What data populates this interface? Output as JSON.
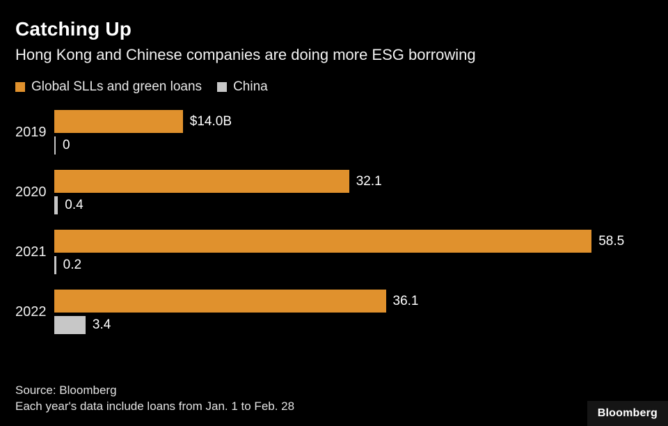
{
  "header": {
    "title": "Catching Up",
    "subtitle": "Hong Kong and Chinese companies are doing more ESG borrowing"
  },
  "chart_data": {
    "type": "bar",
    "orientation": "horizontal",
    "title": "Catching Up",
    "subtitle": "Hong Kong and Chinese companies are doing more ESG borrowing",
    "legend_position": "top",
    "xlim": [
      0,
      60
    ],
    "grid": false,
    "categories": [
      "2019",
      "2020",
      "2021",
      "2022"
    ],
    "series": [
      {
        "name": "Global SLLs and green loans",
        "color": "#E0912D",
        "values": [
          14.0,
          32.1,
          58.5,
          36.1
        ],
        "labels": [
          "$14.0B",
          "32.1",
          "58.5",
          "36.1"
        ]
      },
      {
        "name": "China",
        "color": "#C7C7C7",
        "values": [
          0,
          0.4,
          0.2,
          3.4
        ],
        "labels": [
          "0",
          "0.4",
          "0.2",
          "3.4"
        ]
      }
    ]
  },
  "footer": {
    "source": "Source: Bloomberg",
    "note": "Each year's data include loans from Jan. 1 to Feb. 28",
    "logo": "Bloomberg"
  }
}
